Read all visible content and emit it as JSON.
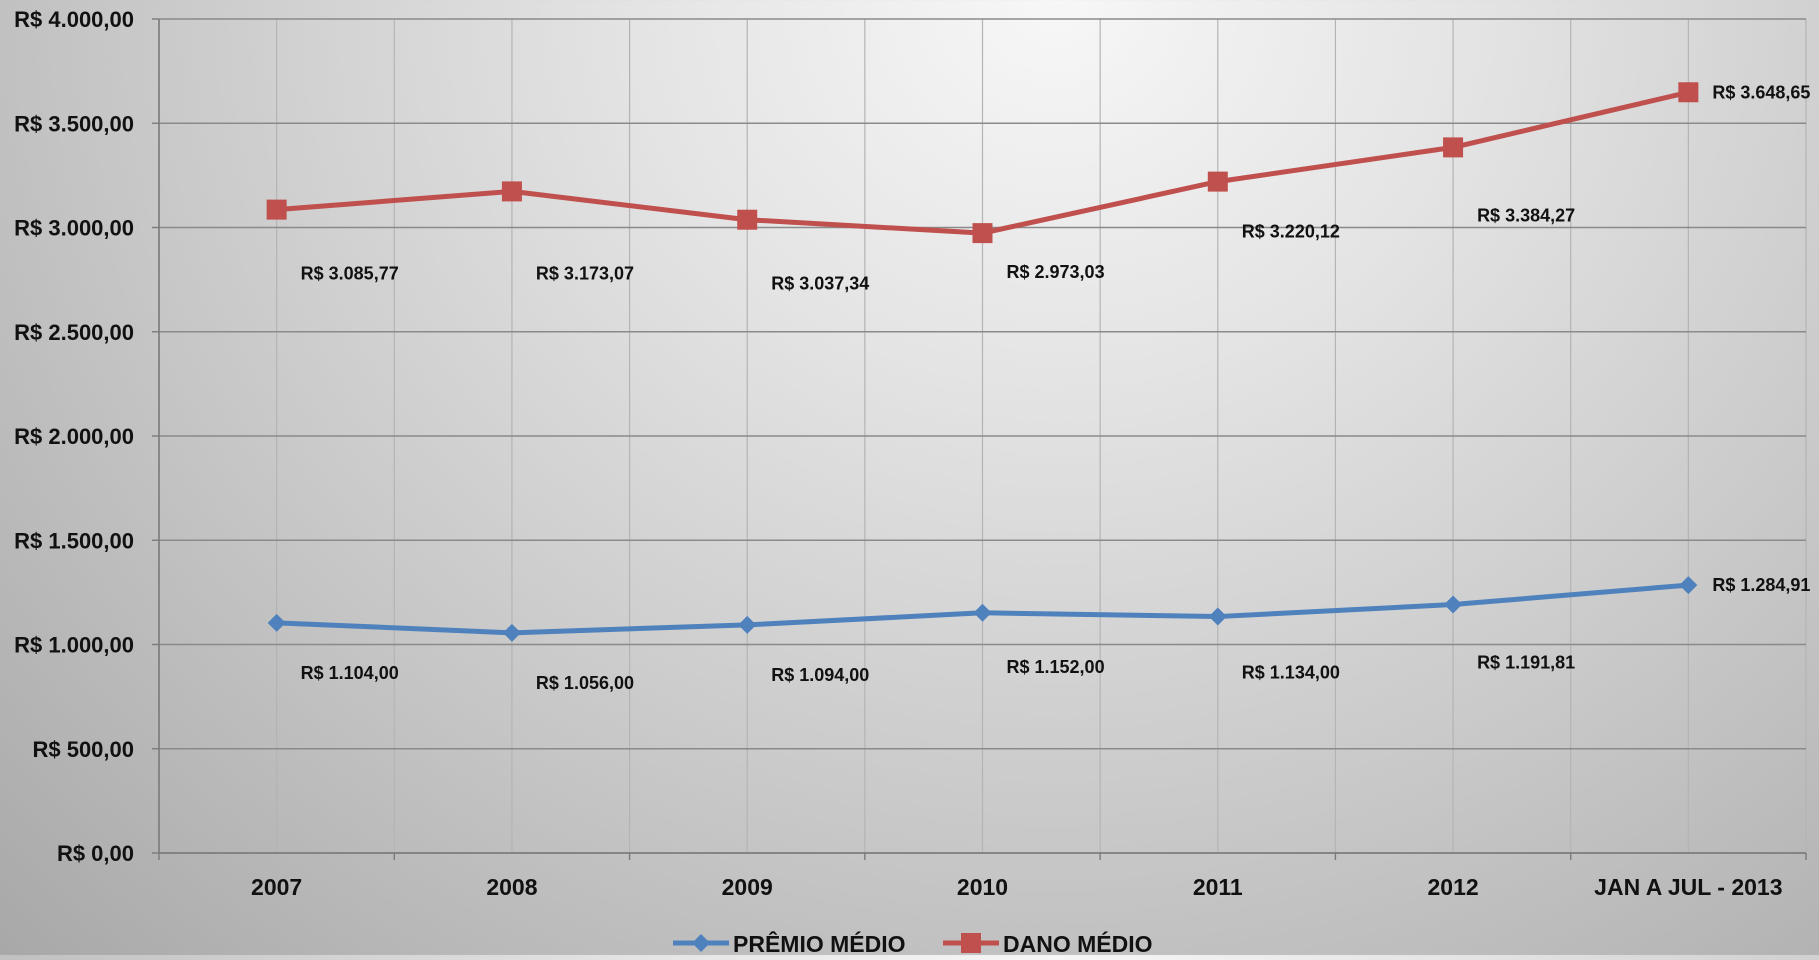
{
  "chart_data": {
    "type": "line",
    "title": "",
    "xlabel": "",
    "ylabel": "",
    "categories": [
      "2007",
      "2008",
      "2009",
      "2010",
      "2011",
      "2012",
      "JAN A JUL - 2013"
    ],
    "ylim": [
      0,
      4000
    ],
    "yticks": [
      {
        "value": 0,
        "label": "R$ 0,00"
      },
      {
        "value": 500,
        "label": "R$ 500,00"
      },
      {
        "value": 1000,
        "label": "R$ 1.000,00"
      },
      {
        "value": 1500,
        "label": "R$ 1.500,00"
      },
      {
        "value": 2000,
        "label": "R$ 2.000,00"
      },
      {
        "value": 2500,
        "label": "R$ 2.500,00"
      },
      {
        "value": 3000,
        "label": "R$ 3.000,00"
      },
      {
        "value": 3500,
        "label": "R$ 3.500,00"
      },
      {
        "value": 4000,
        "label": "R$ 4.000,00"
      }
    ],
    "grid": true,
    "legend_position": "bottom",
    "series": [
      {
        "name": "PRÊMIO MÉDIO",
        "color": "#4f81bd",
        "marker": "diamond",
        "values": [
          1104.0,
          1056.0,
          1094.0,
          1152.0,
          1134.0,
          1191.81,
          1284.91
        ],
        "labels": [
          "R$ 1.104,00",
          "R$ 1.056,00",
          "R$ 1.094,00",
          "R$ 1.152,00",
          "R$ 1.134,00",
          "R$ 1.191,81",
          "R$ 1.284,91"
        ]
      },
      {
        "name": "DANO MÉDIO",
        "color": "#c0504d",
        "marker": "square",
        "values": [
          3085.77,
          3173.07,
          3037.34,
          2973.03,
          3220.12,
          3384.27,
          3648.65
        ],
        "labels": [
          "R$ 3.085,77",
          "R$ 3.173,07",
          "R$ 3.037,34",
          "R$ 2.973,03",
          "R$ 3.220,12",
          "R$ 3.384,27",
          "R$ 3.648,65"
        ]
      }
    ]
  }
}
